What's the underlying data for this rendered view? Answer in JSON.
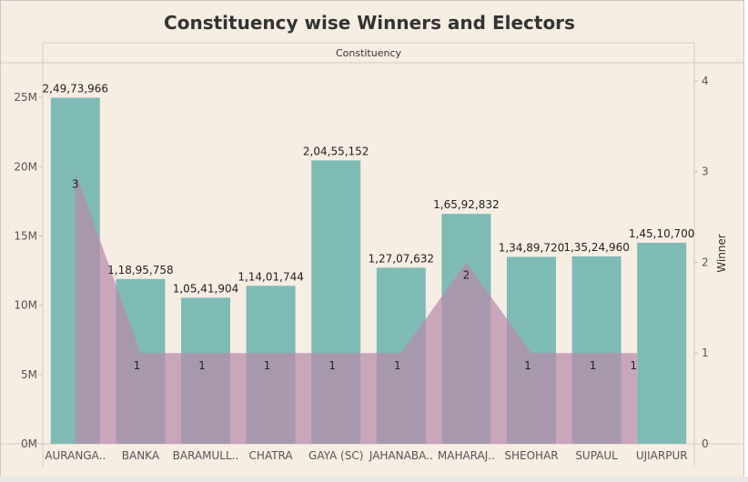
{
  "title": "Constituency wise Winners and Electors",
  "header_label": "Constituency",
  "chart_data": {
    "type": "bar",
    "categories": [
      "AURANGA..",
      "BANKA",
      "BARAMULL..",
      "CHATRA",
      "GAYA (SC)",
      "JAHANABA..",
      "MAHARAJ..",
      "SHEOHAR",
      "SUPAUL",
      "UJIARPUR"
    ],
    "series": [
      {
        "values": [
          24973966,
          11895758,
          10541904,
          11401744,
          20455152,
          12707632,
          16592832,
          13489720,
          13524960,
          14510700
        ],
        "labels": [
          "2,49,73,966",
          "1,18,95,758",
          "1,05,41,904",
          "1,14,01,744",
          "2,04,55,152",
          "1,27,07,632",
          "1,65,92,832",
          "1,34,89,720",
          "1,35,24,960",
          "1,45,10,700"
        ],
        "mark": "bar",
        "axis": "left",
        "color": "#7fbbb5"
      },
      {
        "values": [
          3,
          1,
          1,
          1,
          1,
          1,
          2,
          1,
          1,
          1
        ],
        "labels": [
          "3",
          "1",
          "1",
          "1",
          "1",
          "1",
          "2",
          "1",
          "1",
          "1"
        ],
        "mark": "area",
        "axis": "right",
        "color": "#b98aac"
      }
    ],
    "left_axis": {
      "ylim": [
        0,
        27500000
      ],
      "ticks": [
        0,
        5000000,
        10000000,
        15000000,
        20000000,
        25000000
      ],
      "tick_labels": [
        "0M",
        "5M",
        "10M",
        "15M",
        "20M",
        "25M"
      ]
    },
    "right_axis": {
      "ylabel": "Winner",
      "ylim": [
        0,
        4.2
      ],
      "ticks": [
        0,
        1,
        2,
        3,
        4
      ],
      "tick_labels": [
        "0",
        "1",
        "2",
        "3",
        "4"
      ]
    },
    "grid": false,
    "legend": "none"
  }
}
